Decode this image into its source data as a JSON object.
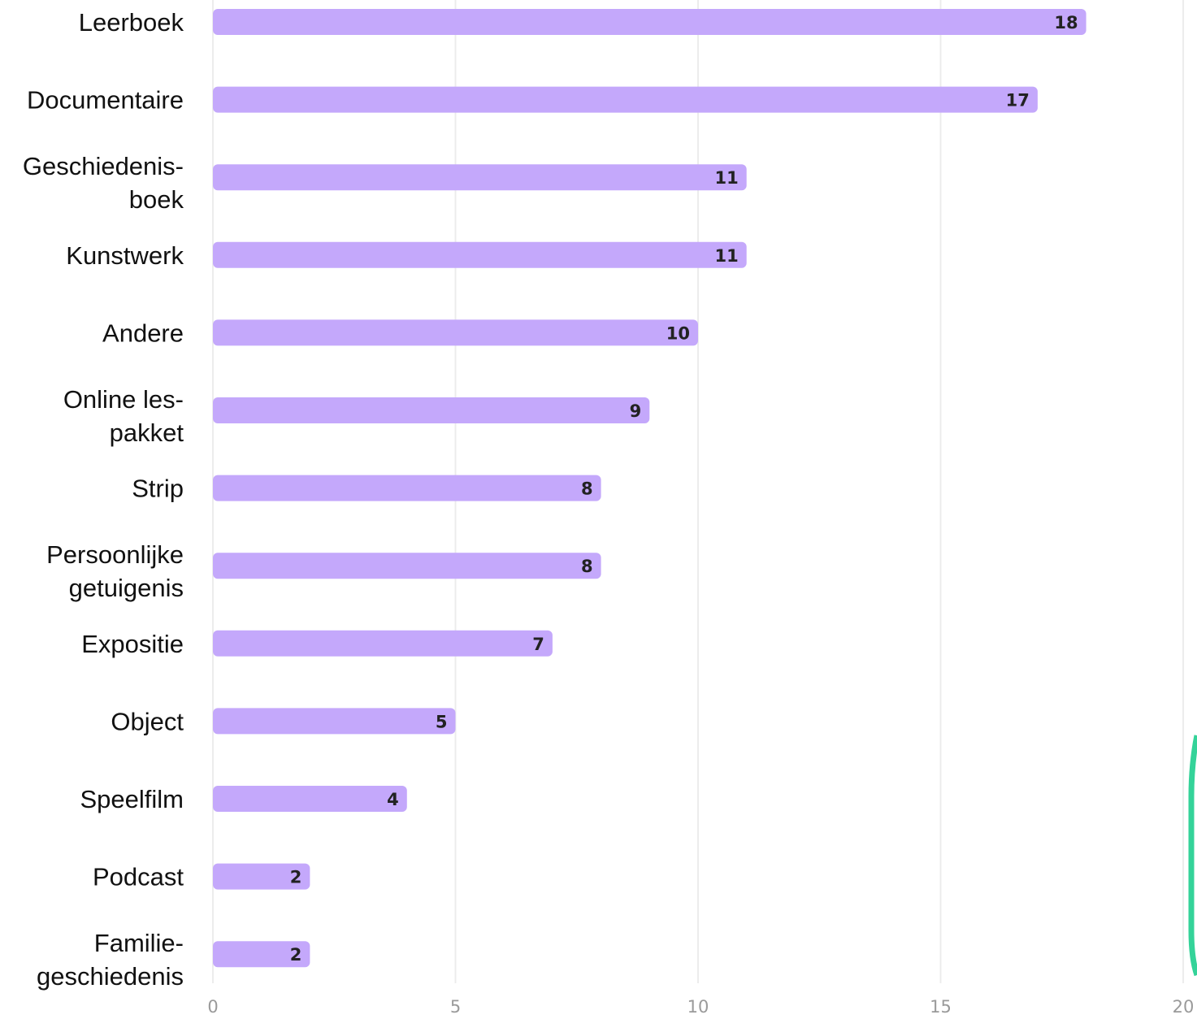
{
  "chart_data": {
    "type": "bar",
    "orientation": "horizontal",
    "categories": [
      [
        "Leerboek"
      ],
      [
        "Documentaire"
      ],
      [
        "Geschiedenis-",
        "boek"
      ],
      [
        "Kunstwerk"
      ],
      [
        "Andere"
      ],
      [
        "Online les-",
        "pakket"
      ],
      [
        "Strip"
      ],
      [
        "Persoonlijke",
        "getuigenis"
      ],
      [
        "Expositie"
      ],
      [
        "Object"
      ],
      [
        "Speelfilm"
      ],
      [
        "Podcast"
      ],
      [
        "Familie-",
        "geschiedenis"
      ]
    ],
    "values": [
      18,
      17,
      11,
      11,
      10,
      9,
      8,
      8,
      7,
      5,
      4,
      2,
      2
    ],
    "xlim": [
      0,
      20
    ],
    "xticks": [
      "0",
      "5",
      "10",
      "15",
      "20"
    ],
    "grid": true,
    "colors": {
      "bar": "#c4a8fb",
      "value_text": "#222222",
      "tick_text": "#9a9a9a",
      "accent_bracket": "#34d399"
    }
  }
}
